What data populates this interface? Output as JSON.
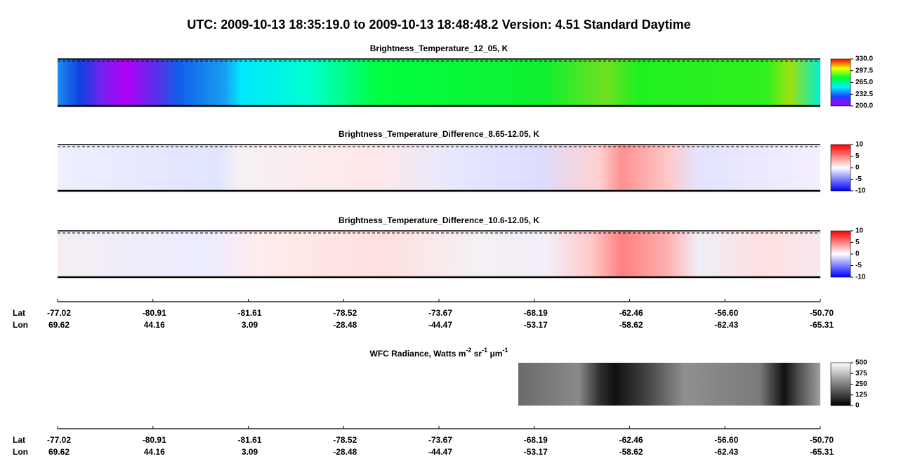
{
  "title": "UTC:  2009-10-13   18:35:19.0  to  2009-10-13   18:48:48.2    Version: 4.51  Standard Daytime",
  "panels": [
    {
      "title": "Brightness_Temperature_12_05, K",
      "clim": [
        200,
        330
      ],
      "cticks": [
        {
          "value": 200,
          "label": "200.0"
        },
        {
          "value": 232.5,
          "label": "232.5"
        },
        {
          "value": 265,
          "label": "265.0"
        },
        {
          "value": 297.5,
          "label": "297.5"
        },
        {
          "value": 330,
          "label": "330.0"
        }
      ]
    },
    {
      "title": "Brightness_Temperature_Difference_8.65-12.05, K",
      "clim": [
        -10,
        10
      ],
      "cticks": [
        -10,
        -5,
        0,
        5,
        10
      ]
    },
    {
      "title": "Brightness_Temperature_Difference_10.6-12.05, K",
      "clim": [
        -10,
        10
      ],
      "cticks": [
        -10,
        -5,
        0,
        5,
        10
      ]
    },
    {
      "title_parts": [
        "WFC Radiance, Watts m",
        "-2",
        " sr",
        "-1",
        " μm",
        "-1"
      ],
      "clim": [
        0,
        500
      ],
      "cticks": [
        0,
        125,
        250,
        375,
        500
      ]
    }
  ],
  "axis": {
    "lat_label": "Lat",
    "lon_label": "Lon",
    "lat": [
      "-77.02",
      "-80.91",
      "-81.61",
      "-78.52",
      "-73.67",
      "-68.19",
      "-62.46",
      "-56.60",
      "-50.70"
    ],
    "lon": [
      "69.62",
      "44.16",
      "3.09",
      "-28.48",
      "-44.47",
      "-53.17",
      "-58.62",
      "-62.43",
      "-65.31"
    ]
  }
}
